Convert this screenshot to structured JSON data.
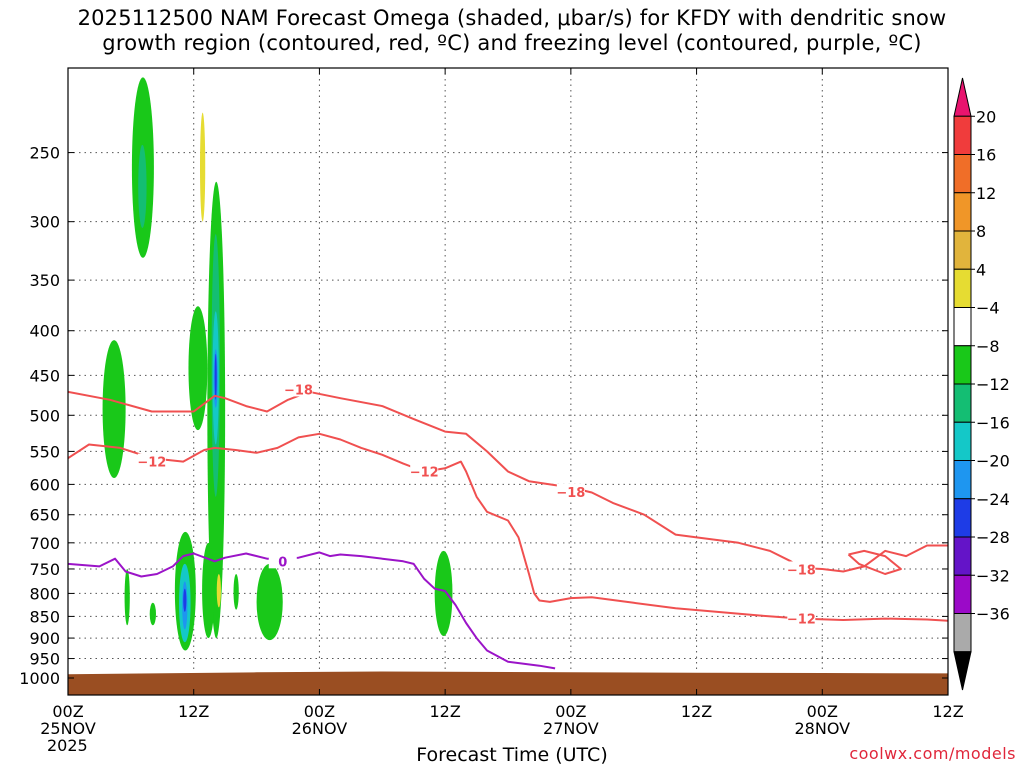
{
  "title_lines": [
    "2025112500 NAM Forecast Omega (shaded, μbar/s) for KFDY with dendritic snow",
    "growth region (contoured, red, ºC) and freezing level (contoured, purple, ºC)"
  ],
  "xlabel": "Forecast Time (UTC)",
  "credit": "coolwx.com/models",
  "chart_data": {
    "type": "contour",
    "station": "KFDY",
    "run": "2025112500",
    "y_axis": {
      "unit": "hPa",
      "scale": "log",
      "inverted": true,
      "range": [
        1000,
        200
      ],
      "ticks": [
        250,
        300,
        350,
        400,
        450,
        500,
        550,
        600,
        650,
        700,
        750,
        800,
        850,
        900,
        950,
        1000
      ],
      "tick_labels": [
        "250",
        "300",
        "350",
        "400",
        "450",
        "500",
        "550",
        "600",
        "650",
        "700",
        "750",
        "800",
        "850",
        "900",
        "950",
        "1000"
      ]
    },
    "x_axis": {
      "unit": "hours from 2025-11-25 00Z",
      "range": [
        0,
        84
      ],
      "ticks": [
        0,
        12,
        24,
        36,
        48,
        60,
        72,
        84
      ],
      "tick_labels": [
        [
          "00Z",
          "25NOV",
          "2025"
        ],
        [
          "12Z"
        ],
        [
          "00Z",
          "26NOV"
        ],
        [
          "12Z"
        ],
        [
          "00Z",
          "27NOV"
        ],
        [
          "12Z"
        ],
        [
          "00Z",
          "28NOV"
        ],
        [
          "12Z"
        ]
      ]
    },
    "grid": true,
    "colorbar": {
      "unit": "μbar/s",
      "labels": [
        "20",
        "16",
        "12",
        "8",
        "4",
        "−4",
        "−8",
        "−12",
        "−16",
        "−20",
        "−24",
        "−28",
        "−32",
        "−36"
      ],
      "colors": [
        "#e8146e",
        "#f03c3c",
        "#f06e28",
        "#f09628",
        "#e1b43c",
        "#e6dc32",
        "#ffffff",
        "#19c819",
        "#14be73",
        "#14c8c8",
        "#1e96f0",
        "#1e3ce6",
        "#6414c8",
        "#9b0ac8",
        "#aaaaaa",
        "#000000"
      ]
    },
    "omega_regions": [
      {
        "value": -6,
        "color": "#19c819",
        "x": [
          6.1,
          8.2
        ],
        "p": [
          205,
          330
        ]
      },
      {
        "value": -10,
        "color": "#14be73",
        "x": [
          6.7,
          7.5
        ],
        "p": [
          245,
          305
        ]
      },
      {
        "value": 6,
        "color": "#e6dc32",
        "x": [
          12.6,
          13.1
        ],
        "p": [
          225,
          300
        ]
      },
      {
        "value": -6,
        "color": "#19c819",
        "x": [
          3.3,
          5.5
        ],
        "p": [
          410,
          590
        ]
      },
      {
        "value": -6,
        "color": "#19c819",
        "x": [
          11.5,
          13.3
        ],
        "p": [
          375,
          520
        ]
      },
      {
        "value": -6,
        "color": "#19c819",
        "x": [
          13.3,
          15.0
        ],
        "p": [
          270,
          900
        ]
      },
      {
        "value": -10,
        "color": "#14be73",
        "x": [
          13.7,
          14.5
        ],
        "p": [
          310,
          620
        ]
      },
      {
        "value": -14,
        "color": "#14c8c8",
        "x": [
          13.8,
          14.4
        ],
        "p": [
          380,
          540
        ]
      },
      {
        "value": -18,
        "color": "#1e96f0",
        "x": [
          13.9,
          14.3
        ],
        "p": [
          420,
          490
        ]
      },
      {
        "value": -22,
        "color": "#1e3ce6",
        "x": [
          14.0,
          14.2
        ],
        "p": [
          425,
          480
        ]
      },
      {
        "value": -6,
        "color": "#19c819",
        "x": [
          10.2,
          12.2
        ],
        "p": [
          680,
          930
        ]
      },
      {
        "value": -12,
        "color": "#14c8c8",
        "x": [
          10.6,
          11.7
        ],
        "p": [
          740,
          910
        ]
      },
      {
        "value": -18,
        "color": "#1e96f0",
        "x": [
          10.9,
          11.4
        ],
        "p": [
          775,
          880
        ]
      },
      {
        "value": -22,
        "color": "#1e3ce6",
        "x": [
          11.0,
          11.3
        ],
        "p": [
          790,
          840
        ]
      },
      {
        "value": -6,
        "color": "#19c819",
        "x": [
          12.8,
          14.0
        ],
        "p": [
          700,
          900
        ]
      },
      {
        "value": -6,
        "color": "#19c819",
        "x": [
          18.0,
          20.5
        ],
        "p": [
          740,
          905
        ]
      },
      {
        "value": -6,
        "color": "#19c819",
        "x": [
          35.0,
          36.7
        ],
        "p": [
          715,
          895
        ]
      },
      {
        "value": -6,
        "color": "#19c819",
        "x": [
          5.4,
          5.9
        ],
        "p": [
          750,
          870
        ]
      },
      {
        "value": -6,
        "color": "#19c819",
        "x": [
          7.8,
          8.4
        ],
        "p": [
          820,
          870
        ]
      },
      {
        "value": -6,
        "color": "#19c819",
        "x": [
          15.8,
          16.3
        ],
        "p": [
          760,
          835
        ]
      },
      {
        "value": 6,
        "color": "#e6dc32",
        "x": [
          14.2,
          14.6
        ],
        "p": [
          760,
          830
        ]
      }
    ],
    "contours": [
      {
        "name": "-18 ºC isotherm",
        "color": "#f05050",
        "label": "−18",
        "label_points": [
          {
            "x": 22,
            "p": 467
          },
          {
            "x": 48,
            "p": 612
          },
          {
            "x": 70,
            "p": 751
          }
        ],
        "x": [
          0,
          4,
          8,
          12,
          14,
          15,
          17,
          19,
          21,
          23,
          26,
          30,
          33,
          36,
          38,
          40,
          42,
          44,
          48,
          50,
          52,
          55,
          58,
          60,
          64,
          67,
          69,
          70,
          72,
          74,
          76,
          78,
          80,
          82,
          84
        ],
        "p": [
          470,
          480,
          495,
          495,
          475,
          478,
          488,
          495,
          480,
          470,
          478,
          488,
          505,
          522,
          525,
          550,
          580,
          595,
          605,
          613,
          630,
          650,
          685,
          690,
          700,
          715,
          735,
          748,
          750,
          755,
          745,
          715,
          725,
          705,
          705
        ]
      },
      {
        "name": "-18 ºC isotherm (closed)",
        "color": "#f05050",
        "label": "",
        "x": [
          74.5,
          76,
          78,
          79.5,
          78,
          75.5,
          74.5
        ],
        "p": [
          722,
          715,
          725,
          750,
          760,
          740,
          722
        ]
      },
      {
        "name": "-12 ºC isotherm",
        "color": "#f05050",
        "label": "−12",
        "label_points": [
          {
            "x": 8,
            "p": 565
          },
          {
            "x": 34,
            "p": 580
          },
          {
            "x": 70,
            "p": 855
          }
        ],
        "x": [
          0,
          2,
          5,
          8,
          11,
          13,
          14,
          16,
          18,
          20,
          22,
          24,
          26,
          28,
          30,
          32,
          34,
          36,
          37.5,
          38,
          39,
          40,
          42,
          43,
          44,
          44.5,
          45,
          46,
          48,
          50,
          54,
          58,
          62,
          66,
          70,
          74,
          78,
          82,
          84
        ],
        "p": [
          560,
          540,
          545,
          560,
          565,
          548,
          545,
          548,
          552,
          545,
          530,
          525,
          533,
          545,
          555,
          568,
          580,
          575,
          565,
          580,
          620,
          645,
          660,
          690,
          760,
          800,
          815,
          818,
          810,
          808,
          820,
          832,
          840,
          848,
          855,
          858,
          855,
          857,
          860
        ]
      },
      {
        "name": "0 ºC freezing level",
        "color": "#9b14c8",
        "label": "0",
        "label_points": [
          {
            "x": 20.5,
            "p": 735
          }
        ],
        "x": [
          0,
          3,
          4.5,
          5.5,
          7,
          8.5,
          10,
          11,
          12,
          14,
          15,
          17,
          19,
          22,
          24,
          25,
          26,
          28,
          30,
          32,
          33,
          34,
          35,
          36,
          37,
          38,
          39,
          40,
          42,
          45,
          46.5
        ],
        "p": [
          740,
          745,
          730,
          755,
          765,
          760,
          745,
          725,
          720,
          735,
          728,
          720,
          730,
          728,
          718,
          725,
          722,
          725,
          730,
          735,
          740,
          770,
          790,
          795,
          825,
          865,
          900,
          930,
          958,
          968,
          975
        ]
      }
    ],
    "ground": {
      "color": "#9a4e22",
      "p_top": 985
    }
  }
}
